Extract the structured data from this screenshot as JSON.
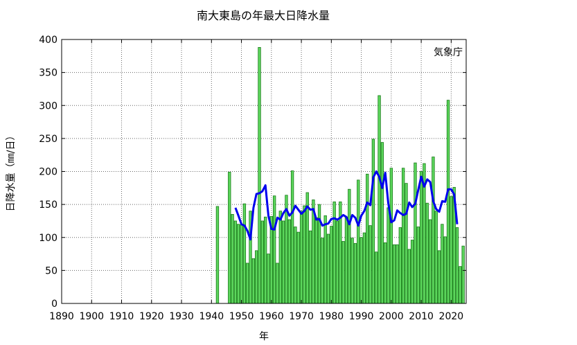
{
  "chart_data": {
    "type": "bar",
    "title": "南大東島の年最大日降水量",
    "xlabel": "年",
    "ylabel": "日降水量（㎜/日）",
    "credit": "気象庁",
    "xlim": [
      1890,
      2025
    ],
    "ylim": [
      0,
      400
    ],
    "xticks": [
      1890,
      1900,
      1910,
      1920,
      1930,
      1940,
      1950,
      1960,
      1970,
      1980,
      1990,
      2000,
      2010,
      2020
    ],
    "yticks": [
      0,
      50,
      100,
      150,
      200,
      250,
      300,
      350,
      400
    ],
    "grid": true,
    "colors": {
      "bar_fill": "#5cd65c",
      "bar_edge": "#1a7a1a",
      "line": "#0000ee"
    },
    "series": [
      {
        "type": "bar",
        "x": [
          1942,
          1946,
          1947,
          1948,
          1949,
          1950,
          1951,
          1952,
          1953,
          1954,
          1955,
          1956,
          1957,
          1958,
          1959,
          1960,
          1961,
          1962,
          1963,
          1964,
          1965,
          1966,
          1967,
          1968,
          1969,
          1970,
          1971,
          1972,
          1973,
          1974,
          1975,
          1976,
          1977,
          1978,
          1979,
          1980,
          1981,
          1982,
          1983,
          1984,
          1985,
          1986,
          1987,
          1988,
          1989,
          1990,
          1991,
          1992,
          1993,
          1994,
          1995,
          1996,
          1997,
          1998,
          1999,
          2000,
          2001,
          2002,
          2003,
          2004,
          2005,
          2006,
          2007,
          2008,
          2009,
          2010,
          2011,
          2012,
          2013,
          2014,
          2015,
          2016,
          2017,
          2018,
          2019,
          2020,
          2021,
          2022,
          2023,
          2024
        ],
        "values": [
          147,
          199,
          135,
          125,
          120,
          119,
          151,
          61,
          140,
          68,
          80,
          388,
          125,
          131,
          75,
          132,
          163,
          61,
          140,
          125,
          164,
          127,
          201,
          116,
          108,
          140,
          148,
          168,
          110,
          157,
          130,
          150,
          99,
          133,
          105,
          117,
          154,
          125,
          154,
          94,
          131,
          173,
          99,
          91,
          187,
          100,
          107,
          196,
          118,
          249,
          78,
          315,
          244,
          92,
          145,
          205,
          89,
          89,
          115,
          205,
          182,
          82,
          96,
          213,
          116,
          200,
          212,
          152,
          127,
          222,
          140,
          80,
          120,
          101,
          308,
          162,
          176,
          115,
          56,
          87
        ]
      },
      {
        "type": "line",
        "x": [
          1948,
          1949,
          1950,
          1951,
          1952,
          1953,
          1954,
          1955,
          1956,
          1957,
          1958,
          1959,
          1960,
          1961,
          1962,
          1963,
          1964,
          1965,
          1966,
          1967,
          1968,
          1969,
          1970,
          1971,
          1972,
          1973,
          1974,
          1975,
          1976,
          1977,
          1978,
          1979,
          1980,
          1981,
          1982,
          1983,
          1984,
          1985,
          1986,
          1987,
          1988,
          1989,
          1990,
          1991,
          1992,
          1993,
          1994,
          1995,
          1996,
          1997,
          1998,
          1999,
          2000,
          2001,
          2002,
          2003,
          2004,
          2005,
          2006,
          2007,
          2008,
          2009,
          2010,
          2011,
          2012,
          2013,
          2014,
          2015,
          2016,
          2017,
          2018,
          2019,
          2020,
          2021,
          2022
        ],
        "values": [
          145,
          133,
          120,
          118,
          110,
          97,
          145,
          166,
          167,
          170,
          179,
          133,
          113,
          112,
          130,
          127,
          137,
          143,
          133,
          138,
          148,
          142,
          136,
          140,
          147,
          142,
          143,
          127,
          128,
          118,
          120,
          121,
          128,
          129,
          127,
          130,
          134,
          131,
          120,
          134,
          130,
          118,
          133,
          140,
          153,
          149,
          191,
          200,
          192,
          175,
          198,
          152,
          123,
          126,
          141,
          137,
          134,
          136,
          153,
          146,
          151,
          172,
          192,
          177,
          188,
          184,
          155,
          143,
          139,
          155,
          154,
          173,
          173,
          165,
          120
        ]
      }
    ]
  }
}
